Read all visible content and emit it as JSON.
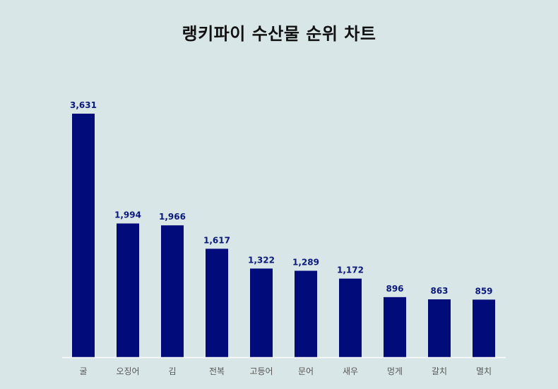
{
  "chart_data": {
    "type": "bar",
    "title": "랭키파이 수산물 순위 차트",
    "categories": [
      "굴",
      "오징어",
      "김",
      "전복",
      "고등어",
      "문어",
      "새우",
      "멍게",
      "갈치",
      "멸치"
    ],
    "values": [
      3631,
      1994,
      1966,
      1617,
      1322,
      1289,
      1172,
      896,
      863,
      859
    ],
    "value_labels": [
      "3,631",
      "1,994",
      "1,966",
      "1,617",
      "1,322",
      "1,289",
      "1,172",
      "896",
      "863",
      "859"
    ],
    "xlabel": "",
    "ylabel": "",
    "ylim": [
      0,
      3631
    ],
    "grid": false,
    "bar_color": "#020b7a",
    "value_label_color": "#0a1a7a",
    "background": "#d9e6e8"
  }
}
